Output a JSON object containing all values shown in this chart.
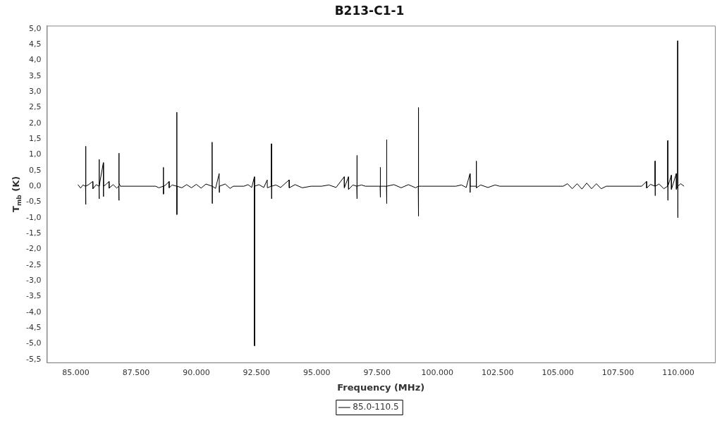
{
  "chart_data": {
    "type": "line",
    "title": "B213-C1-1",
    "xlabel": "Frequency (MHz)",
    "ylabel": "T$_{mb}$ (K)",
    "legend": "bottom",
    "xlim": [
      83800,
      111520
    ],
    "ylim": [
      -5.6,
      5.1
    ],
    "xticks": [
      {
        "value": 85000,
        "label": "85.000"
      },
      {
        "value": 87500,
        "label": "87.500"
      },
      {
        "value": 90000,
        "label": "90.000"
      },
      {
        "value": 92500,
        "label": "92.500"
      },
      {
        "value": 95000,
        "label": "95.000"
      },
      {
        "value": 97500,
        "label": "97.500"
      },
      {
        "value": 100000,
        "label": "100.000"
      },
      {
        "value": 102500,
        "label": "102.500"
      },
      {
        "value": 105000,
        "label": "105.000"
      },
      {
        "value": 107500,
        "label": "107.500"
      },
      {
        "value": 110000,
        "label": "110.000"
      }
    ],
    "yticks": [
      {
        "value": 5,
        "label": "5,0"
      },
      {
        "value": 4.5,
        "label": "4,5"
      },
      {
        "value": 4,
        "label": "4,0"
      },
      {
        "value": 3.5,
        "label": "3,5"
      },
      {
        "value": 3,
        "label": "3,0"
      },
      {
        "value": 2.5,
        "label": "2,5"
      },
      {
        "value": 2,
        "label": "2,0"
      },
      {
        "value": 1.5,
        "label": "1,5"
      },
      {
        "value": 1,
        "label": "1,0"
      },
      {
        "value": 0.5,
        "label": "0,5"
      },
      {
        "value": 0,
        "label": "0,0"
      },
      {
        "value": -0.5,
        "label": "-0,5"
      },
      {
        "value": -1,
        "label": "-1,0"
      },
      {
        "value": -1.5,
        "label": "-1,5"
      },
      {
        "value": -2,
        "label": "-2,0"
      },
      {
        "value": -2.5,
        "label": "-2,5"
      },
      {
        "value": -3,
        "label": "-3,0"
      },
      {
        "value": -3.5,
        "label": "-3,5"
      },
      {
        "value": -4,
        "label": "-4,0"
      },
      {
        "value": -4.5,
        "label": "-4,5"
      },
      {
        "value": -5,
        "label": "-5,0"
      },
      {
        "value": -5.5,
        "label": "-5,5"
      }
    ],
    "x": [
      85088,
      85200,
      85300,
      85405,
      85410,
      85415,
      85420,
      85550,
      85703,
      85710,
      85850,
      85962,
      85967,
      85972,
      85977,
      86143,
      86148,
      86153,
      86260,
      86378,
      86383,
      86550,
      86700,
      86783,
      86788,
      86793,
      86798,
      86847,
      88312,
      88450,
      88629,
      88634,
      88639,
      88644,
      88750,
      88869,
      88874,
      89000,
      89186,
      89191,
      89196,
      89201,
      89400,
      89600,
      89800,
      90000,
      90200,
      90400,
      90652,
      90657,
      90662,
      90667,
      90800,
      90950,
      90955,
      90960,
      91200,
      91400,
      91536,
      91976,
      92150,
      92300,
      92411,
      92416,
      92421,
      92600,
      92800,
      92943,
      92948,
      93114,
      93119,
      93124,
      93129,
      93300,
      93500,
      93852,
      93857,
      94100,
      94400,
      94760,
      95200,
      95500,
      95800,
      96138,
      96143,
      96314,
      96319,
      96500,
      96660,
      96665,
      96670,
      96675,
      96850,
      97017,
      97545,
      97628,
      97633,
      97638,
      97643,
      97892,
      97897,
      97902,
      97907,
      98200,
      98500,
      98800,
      99100,
      99210,
      99215,
      99220,
      99225,
      99362,
      100769,
      101000,
      101200,
      101355,
      101360,
      101365,
      101614,
      101619,
      101624,
      101800,
      102100,
      102400,
      102586,
      105224,
      105400,
      105600,
      105800,
      106000,
      106200,
      106400,
      106600,
      106800,
      107012,
      108478,
      108683,
      108688,
      108850,
      109030,
      109035,
      109040,
      109045,
      109200,
      109400,
      109557,
      109562,
      109567,
      109572,
      109709,
      109714,
      109915,
      109920,
      109968,
      109973,
      109978,
      109983,
      110100,
      110237
    ],
    "series": [
      {
        "name": "85.0-110.5",
        "color": "#000000",
        "values": [
          0.05,
          -0.06,
          0.04,
          0,
          1.27,
          -0.58,
          0,
          0.06,
          0.15,
          -0.08,
          0.05,
          0,
          0.85,
          -0.4,
          0,
          0.75,
          -0.33,
          0,
          0.06,
          0.15,
          -0.06,
          0.05,
          -0.06,
          0,
          1.05,
          -0.45,
          0.1,
          0,
          0,
          -0.05,
          0,
          0.6,
          -0.25,
          0,
          0.05,
          0.15,
          -0.05,
          0.04,
          0,
          2.35,
          -0.9,
          0,
          -0.05,
          0.05,
          -0.05,
          0.06,
          -0.06,
          0.07,
          0,
          1.4,
          -0.55,
          0,
          -0.07,
          0.4,
          -0.2,
          0,
          0.07,
          -0.07,
          0,
          0,
          0.05,
          -0.04,
          0.3,
          -5.07,
          0,
          0.05,
          -0.04,
          0.2,
          -0.05,
          0,
          1.35,
          -0.4,
          0,
          0.04,
          -0.04,
          0.2,
          -0.05,
          0.05,
          -0.05,
          0,
          0,
          0.04,
          -0.04,
          0.3,
          -0.05,
          0.3,
          -0.1,
          0.04,
          0,
          0.98,
          -0.4,
          0,
          0.04,
          0,
          0,
          0,
          0.6,
          -0.35,
          0,
          0,
          1.48,
          -0.55,
          0,
          0.05,
          -0.05,
          0.05,
          -0.05,
          0,
          2.5,
          -0.95,
          0,
          0,
          0,
          0.04,
          -0.04,
          0.4,
          -0.2,
          0,
          0,
          0.8,
          -0.05,
          0.04,
          -0.04,
          0.04,
          0,
          0,
          0.08,
          -0.08,
          0.08,
          -0.09,
          0.1,
          -0.08,
          0.08,
          -0.08,
          0,
          0,
          0.15,
          -0.06,
          0.06,
          0,
          0.8,
          -0.3,
          0,
          0.07,
          -0.08,
          0,
          1.45,
          -0.45,
          0,
          0.35,
          -0.1,
          0.4,
          -0.1,
          0,
          4.62,
          -1.0,
          0,
          0.08,
          0
        ]
      }
    ]
  }
}
